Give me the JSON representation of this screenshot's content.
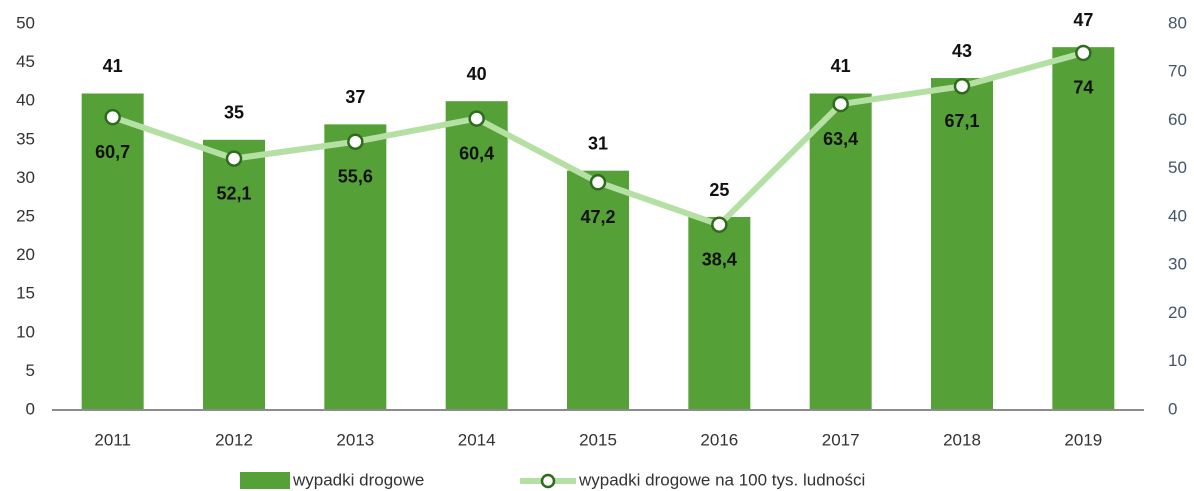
{
  "chart_data": {
    "type": "bar",
    "categories": [
      "2011",
      "2012",
      "2013",
      "2014",
      "2015",
      "2016",
      "2017",
      "2018",
      "2019"
    ],
    "series": [
      {
        "name": "wypadki drogowe",
        "type": "bar",
        "color": "#56a038",
        "values": [
          41,
          35,
          37,
          40,
          31,
          25,
          41,
          43,
          47
        ]
      },
      {
        "name": "wypadki drogowe na 100 tys. ludności",
        "type": "line",
        "axis": "y2",
        "color": "#b5e0a4",
        "marker_color": "#2f6b1e",
        "values": [
          60.7,
          52.1,
          55.6,
          60.4,
          47.2,
          38.4,
          63.4,
          67.1,
          74
        ],
        "value_labels": [
          "60,7",
          "52,1",
          "55,6",
          "60,4",
          "47,2",
          "38,4",
          "63,4",
          "67,1",
          "74"
        ]
      }
    ],
    "ylim": [
      0,
      50
    ],
    "yticks": [
      0,
      5,
      10,
      15,
      20,
      25,
      30,
      35,
      40,
      45,
      50
    ],
    "y2lim": [
      0,
      80
    ],
    "y2ticks": [
      0,
      10,
      20,
      30,
      40,
      50,
      60,
      70,
      80
    ],
    "legend": "bottom"
  }
}
